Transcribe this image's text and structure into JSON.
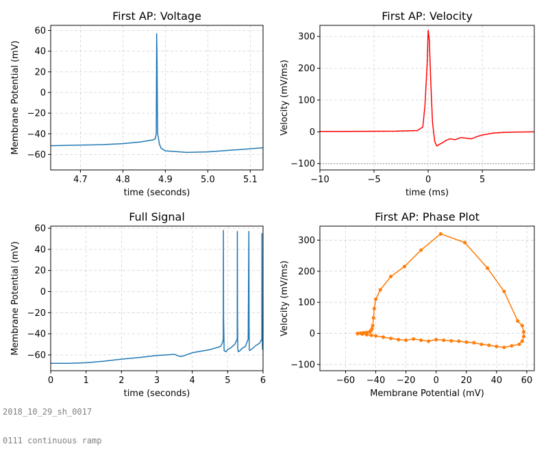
{
  "footer": {
    "line1": "2018_10_29_sh_0017",
    "line2": "0111 continuous ramp"
  },
  "colors": {
    "voltage": "#1f77b4",
    "velocity": "#ff0000",
    "phase": "#ff7f0e",
    "threshold": "#b0b0b0",
    "grid": "#d3d3d3"
  },
  "chart_data": [
    {
      "id": "first-ap-voltage",
      "type": "line",
      "title": "First AP: Voltage",
      "xlabel": "time (seconds)",
      "ylabel": "Membrane Potential (mV)",
      "xlim": [
        4.63,
        5.13
      ],
      "ylim": [
        -75,
        65
      ],
      "xticks": [
        4.7,
        4.8,
        4.9,
        5.0,
        5.1
      ],
      "xtick_labels": [
        "4.7",
        "4.8",
        "4.9",
        "5.0",
        "5.1"
      ],
      "yticks": [
        -60,
        -40,
        -20,
        0,
        20,
        40,
        60
      ],
      "grid": true,
      "series": [
        {
          "color": "#1f77b4",
          "x": [
            4.63,
            4.7,
            4.75,
            4.8,
            4.84,
            4.87,
            4.876,
            4.8785,
            4.8795,
            4.8805,
            4.8812,
            4.882,
            4.886,
            4.89,
            4.9,
            4.95,
            5.0,
            5.05,
            5.1,
            5.13
          ],
          "y": [
            -51.5,
            -51,
            -50.5,
            -49.5,
            -48,
            -46,
            -45,
            -40,
            57,
            30,
            -10,
            -40,
            -50,
            -54,
            -56.5,
            -58,
            -57.5,
            -56,
            -54.5,
            -53.5
          ]
        }
      ]
    },
    {
      "id": "first-ap-velocity",
      "type": "line",
      "title": "First AP: Velocity",
      "xlabel": "time (ms)",
      "ylabel": "Velocity (mV/ms)",
      "xlim": [
        -10,
        9.8
      ],
      "ylim": [
        -120,
        335
      ],
      "xticks": [
        -10,
        -5,
        0,
        5
      ],
      "yticks": [
        -100,
        0,
        100,
        200,
        300
      ],
      "grid": true,
      "threshold_line": {
        "y": -100,
        "style": "dotted"
      },
      "series": [
        {
          "color": "#ff0000",
          "x": [
            -10,
            -3,
            -1,
            -0.5,
            -0.3,
            -0.1,
            0,
            0.1,
            0.25,
            0.4,
            0.6,
            0.8,
            1.0,
            1.3,
            1.6,
            2.0,
            2.5,
            3.0,
            3.5,
            4.0,
            4.5,
            5.0,
            6.0,
            7.0,
            8.0,
            9.8
          ],
          "y": [
            1,
            2,
            4,
            15,
            80,
            210,
            320,
            290,
            150,
            30,
            -30,
            -45,
            -40,
            -35,
            -28,
            -22,
            -25,
            -18,
            -20,
            -22,
            -15,
            -10,
            -4,
            -2,
            -1,
            0
          ]
        }
      ]
    },
    {
      "id": "full-signal",
      "type": "line",
      "title": "Full Signal",
      "xlabel": "time (seconds)",
      "ylabel": "Membrane Potential (mV)",
      "xlim": [
        0,
        6
      ],
      "ylim": [
        -75,
        62
      ],
      "xticks": [
        0,
        1,
        2,
        3,
        4,
        5,
        6
      ],
      "yticks": [
        -60,
        -40,
        -20,
        0,
        20,
        40,
        60
      ],
      "grid": true,
      "series": [
        {
          "color": "#1f77b4",
          "x": [
            0,
            0.5,
            1.0,
            1.5,
            2.0,
            2.5,
            3.0,
            3.5,
            3.6,
            3.7,
            3.75,
            4.0,
            4.5,
            4.8,
            4.86,
            4.875,
            4.88,
            4.885,
            4.9,
            4.95,
            5.0,
            5.1,
            5.2,
            5.27,
            5.275,
            5.28,
            5.285,
            5.3,
            5.35,
            5.4,
            5.5,
            5.58,
            5.6,
            5.605,
            5.61,
            5.62,
            5.7,
            5.8,
            5.9,
            5.965,
            5.97,
            5.975,
            5.98,
            5.99,
            6.0
          ],
          "y": [
            -68,
            -68,
            -67.5,
            -66,
            -64,
            -62.5,
            -60.5,
            -59.5,
            -61,
            -61.5,
            -61,
            -58,
            -55,
            -52,
            -48,
            -45,
            58,
            -25,
            -56,
            -57,
            -55,
            -53,
            -50,
            -45,
            57,
            -25,
            -54,
            -57,
            -56,
            -54,
            -52,
            -45,
            57,
            -25,
            -55,
            -56,
            -54,
            -51,
            -49,
            -45,
            55,
            -25,
            -52,
            -55,
            -54
          ]
        }
      ]
    },
    {
      "id": "first-ap-phase-plot",
      "type": "scatter",
      "title": "First AP: Phase Plot",
      "xlabel": "Membrane Potential (mV)",
      "ylabel": "Velocity (mV/ms)",
      "xlim": [
        -77,
        65
      ],
      "ylim": [
        -120,
        345
      ],
      "xticks": [
        -60,
        -40,
        -20,
        0,
        20,
        40,
        60
      ],
      "yticks": [
        -100,
        0,
        100,
        200,
        300
      ],
      "grid": true,
      "series": [
        {
          "color": "#ff0000",
          "x": [
            -52,
            -50,
            -48,
            -46,
            -44,
            -43,
            -42.5,
            -42,
            -41.5,
            -41,
            -40,
            -37,
            -30,
            -21,
            -10,
            3,
            19,
            34,
            45,
            54,
            57,
            58,
            58,
            57,
            55,
            50,
            45,
            40,
            35,
            30,
            25,
            20,
            15,
            10,
            5,
            0,
            -5,
            -10,
            -15,
            -20,
            -25,
            -30,
            -35,
            -40,
            -43,
            -46,
            -49,
            -52
          ],
          "y": [
            0,
            1,
            2,
            3,
            5,
            10,
            15,
            25,
            50,
            80,
            110,
            140,
            183,
            215,
            268,
            320,
            292,
            210,
            135,
            40,
            25,
            5,
            -10,
            -25,
            -35,
            -40,
            -45,
            -42,
            -38,
            -35,
            -30,
            -28,
            -25,
            -24,
            -22,
            -20,
            -25,
            -22,
            -18,
            -22,
            -20,
            -16,
            -12,
            -8,
            -6,
            -4,
            -2,
            -1
          ]
        }
      ]
    }
  ]
}
